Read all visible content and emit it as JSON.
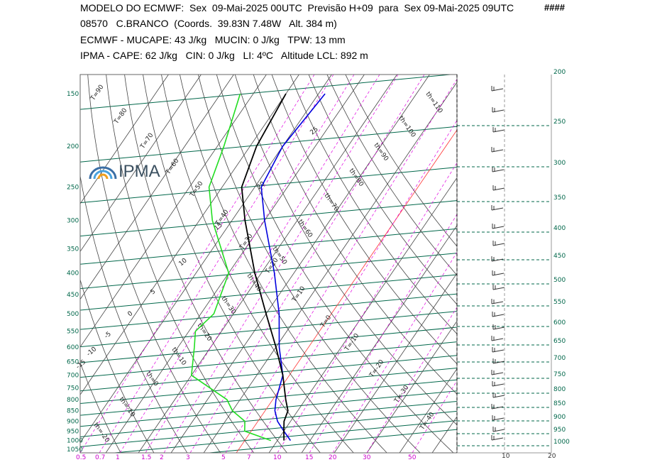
{
  "header": {
    "line1": "MODELO DO ECMWF:  Sex  09-Mai-2025 00UTC  Previsão H+09  para  Sex 09-Mai-2025 09UTC",
    "hashes": "####",
    "line2": "08570   C.BRANCO  (Coords.  39.83N 7.48W   Alt. 384 m)",
    "line3": "ECMWF - MUCAPE: 43 J/kg   MUCIN: 0 J/kg   TPW: 13 mm",
    "line4": "IPMA - CAPE: 62 J/kg   CIN: 0 J/kg   LI: 4ºC   Altitude LCL: 892 m"
  },
  "logo": {
    "text": "IPMA"
  },
  "colors": {
    "isobar": "#00674a",
    "isotherm": "#444444",
    "mixing_ratio": "#e000e0",
    "temperature": "#000000",
    "dewpoint": "#22dd22",
    "parcel": "#0000dd",
    "zero_isotherm": "#ff3333",
    "pressure_labels": "#00674a",
    "mixing_labels": "#cc00cc"
  },
  "chart_data": {
    "type": "skew-t",
    "pressure_axis_labels": [
      "150",
      "200",
      "250",
      "300",
      "350",
      "400",
      "450",
      "500",
      "550",
      "600",
      "650",
      "700",
      "750",
      "800",
      "850",
      "900",
      "950",
      "1000",
      "1050"
    ],
    "pressure_axis_right": [
      "200",
      "250",
      "300",
      "350",
      "400",
      "450",
      "500",
      "550",
      "600",
      "650",
      "700",
      "750",
      "800",
      "850",
      "900",
      "950",
      "1000"
    ],
    "mixing_ratio_labels": [
      "0.5",
      "0.7",
      "1",
      "1.5",
      "2",
      "3",
      "5",
      "7",
      "10",
      "15",
      "20",
      "30",
      "50"
    ],
    "wind_axis_labels": [
      "10",
      "20"
    ],
    "isotherm_labels": [
      "T=90",
      "T=80",
      "T=70",
      "T=60",
      "T=50",
      "T=40",
      "T=30",
      "T=20",
      "T=10",
      "T=0",
      "T=-10",
      "T=-20",
      "T=-30",
      "T=-40"
    ],
    "theta_labels": [
      "th=110",
      "th=100",
      "th=90",
      "th=80",
      "th=70",
      "th=60",
      "th=50",
      "th=40",
      "th=30",
      "th=20",
      "th=10",
      "th=0",
      "th=-10",
      "th=-20"
    ],
    "moist_adiabat_labels": [
      "25",
      "20",
      "15",
      "10",
      "5",
      "0",
      "-5",
      "-10",
      "-15"
    ],
    "temperature_profile": [
      {
        "p": 1000,
        "t": 12
      },
      {
        "p": 950,
        "t": 10
      },
      {
        "p": 900,
        "t": 8
      },
      {
        "p": 850,
        "t": 7
      },
      {
        "p": 800,
        "t": 4
      },
      {
        "p": 700,
        "t": -2
      },
      {
        "p": 600,
        "t": -10
      },
      {
        "p": 500,
        "t": -20
      },
      {
        "p": 400,
        "t": -32
      },
      {
        "p": 300,
        "t": -46
      },
      {
        "p": 250,
        "t": -54
      },
      {
        "p": 200,
        "t": -58
      },
      {
        "p": 150,
        "t": -60
      }
    ],
    "dewpoint_profile": [
      {
        "p": 1000,
        "t": 8
      },
      {
        "p": 950,
        "t": -2
      },
      {
        "p": 900,
        "t": -4
      },
      {
        "p": 850,
        "t": -10
      },
      {
        "p": 800,
        "t": -14
      },
      {
        "p": 700,
        "t": -30
      },
      {
        "p": 600,
        "t": -35
      },
      {
        "p": 550,
        "t": -38
      },
      {
        "p": 500,
        "t": -36
      },
      {
        "p": 400,
        "t": -40
      },
      {
        "p": 300,
        "t": -56
      },
      {
        "p": 250,
        "t": -64
      },
      {
        "p": 200,
        "t": -68
      },
      {
        "p": 150,
        "t": -74
      }
    ],
    "parcel_profile": [
      {
        "p": 1000,
        "t": 14
      },
      {
        "p": 950,
        "t": 10
      },
      {
        "p": 900,
        "t": 6
      },
      {
        "p": 850,
        "t": 3
      },
      {
        "p": 800,
        "t": 1
      },
      {
        "p": 700,
        "t": -2
      },
      {
        "p": 600,
        "t": -9
      },
      {
        "p": 500,
        "t": -16
      },
      {
        "p": 400,
        "t": -26
      },
      {
        "p": 300,
        "t": -40
      },
      {
        "p": 250,
        "t": -48
      },
      {
        "p": 200,
        "t": -50
      },
      {
        "p": 150,
        "t": -48
      }
    ]
  }
}
